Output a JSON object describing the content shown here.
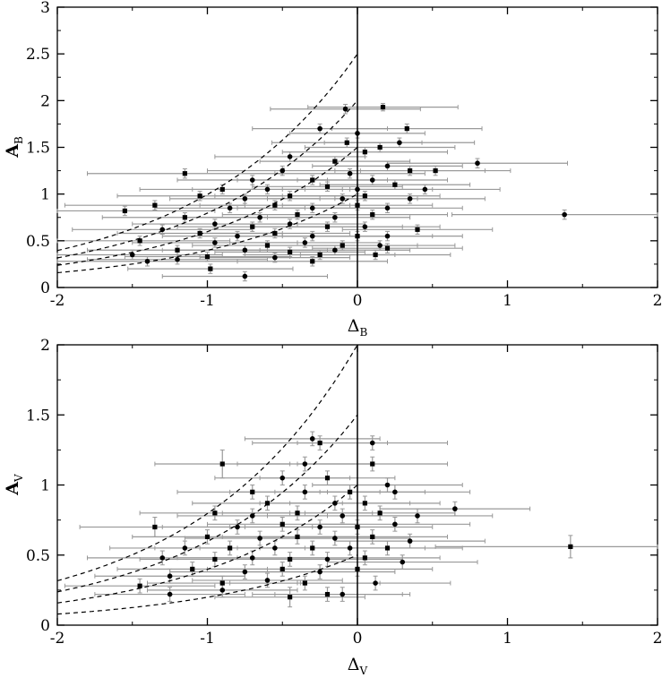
{
  "chart_data": [
    {
      "type": "scatter",
      "title": "",
      "xlabel": "Δ",
      "xlabel_sub": "B",
      "ylabel": "A",
      "ylabel_sub": "B",
      "xlim": [
        -2,
        2
      ],
      "ylim": [
        0,
        3
      ],
      "xticks": [
        -2,
        -1,
        0,
        1,
        2
      ],
      "yticks": [
        0,
        0.5,
        1,
        1.5,
        2,
        2.5,
        3
      ],
      "xtick_labels": [
        "-2",
        "-1",
        "0",
        "1",
        "2"
      ],
      "ytick_labels": [
        "0",
        "0.5",
        "1",
        "1.5",
        "2",
        "2.5",
        "3"
      ],
      "grid": false,
      "legend": "none",
      "vertical_line_x": 0,
      "dashed_curves_amplitude_at_zero": [
        2.5,
        2.0,
        1.5,
        1.0
      ],
      "marker_color": "#000000",
      "errorbar_color": "#999999",
      "points": [
        {
          "x": -0.08,
          "y": 1.91,
          "xerr": 0.5,
          "yerr": 0.05
        },
        {
          "x": 0.17,
          "y": 1.93,
          "xerr": 0.5,
          "yerr": 0.04
        },
        {
          "x": -0.25,
          "y": 1.7,
          "xerr": 0.45,
          "yerr": 0.05
        },
        {
          "x": 0.33,
          "y": 1.7,
          "xerr": 0.5,
          "yerr": 0.05
        },
        {
          "x": 0.0,
          "y": 1.65,
          "xerr": 0.45,
          "yerr": 0.05
        },
        {
          "x": -0.07,
          "y": 1.55,
          "xerr": 0.5,
          "yerr": 0.05
        },
        {
          "x": 0.28,
          "y": 1.55,
          "xerr": 0.5,
          "yerr": 0.05
        },
        {
          "x": 0.15,
          "y": 1.5,
          "xerr": 0.5,
          "yerr": 0.05
        },
        {
          "x": -0.45,
          "y": 1.4,
          "xerr": 0.5,
          "yerr": 0.05
        },
        {
          "x": 0.05,
          "y": 1.45,
          "xerr": 0.55,
          "yerr": 0.05
        },
        {
          "x": 0.8,
          "y": 1.33,
          "xerr": 0.6,
          "yerr": 0.05
        },
        {
          "x": -0.15,
          "y": 1.35,
          "xerr": 0.5,
          "yerr": 0.05
        },
        {
          "x": 0.2,
          "y": 1.3,
          "xerr": 0.5,
          "yerr": 0.05
        },
        {
          "x": -1.15,
          "y": 1.22,
          "xerr": 0.65,
          "yerr": 0.05
        },
        {
          "x": -0.5,
          "y": 1.25,
          "xerr": 0.5,
          "yerr": 0.05
        },
        {
          "x": 0.35,
          "y": 1.25,
          "xerr": 0.5,
          "yerr": 0.05
        },
        {
          "x": -0.05,
          "y": 1.22,
          "xerr": 0.5,
          "yerr": 0.05
        },
        {
          "x": 0.52,
          "y": 1.25,
          "xerr": 0.5,
          "yerr": 0.05
        },
        {
          "x": -0.7,
          "y": 1.15,
          "xerr": 0.5,
          "yerr": 0.05
        },
        {
          "x": -0.3,
          "y": 1.15,
          "xerr": 0.5,
          "yerr": 0.05
        },
        {
          "x": 0.1,
          "y": 1.15,
          "xerr": 0.5,
          "yerr": 0.05
        },
        {
          "x": -0.9,
          "y": 1.05,
          "xerr": 0.55,
          "yerr": 0.05
        },
        {
          "x": -0.6,
          "y": 1.05,
          "xerr": 0.5,
          "yerr": 0.05
        },
        {
          "x": -0.2,
          "y": 1.08,
          "xerr": 0.5,
          "yerr": 0.05
        },
        {
          "x": 0.0,
          "y": 1.05,
          "xerr": 0.5,
          "yerr": 0.05
        },
        {
          "x": 0.25,
          "y": 1.1,
          "xerr": 0.5,
          "yerr": 0.05
        },
        {
          "x": 0.45,
          "y": 1.05,
          "xerr": 0.5,
          "yerr": 0.05
        },
        {
          "x": -1.05,
          "y": 0.98,
          "xerr": 0.55,
          "yerr": 0.05
        },
        {
          "x": -0.75,
          "y": 0.95,
          "xerr": 0.5,
          "yerr": 0.05
        },
        {
          "x": -0.45,
          "y": 0.98,
          "xerr": 0.5,
          "yerr": 0.05
        },
        {
          "x": -0.1,
          "y": 0.95,
          "xerr": 0.5,
          "yerr": 0.05
        },
        {
          "x": 0.05,
          "y": 0.98,
          "xerr": 0.5,
          "yerr": 0.05
        },
        {
          "x": 0.35,
          "y": 0.95,
          "xerr": 0.5,
          "yerr": 0.05
        },
        {
          "x": -1.35,
          "y": 0.88,
          "xerr": 0.6,
          "yerr": 0.05
        },
        {
          "x": -0.85,
          "y": 0.85,
          "xerr": 0.5,
          "yerr": 0.05
        },
        {
          "x": -0.55,
          "y": 0.88,
          "xerr": 0.5,
          "yerr": 0.05
        },
        {
          "x": -0.3,
          "y": 0.85,
          "xerr": 0.5,
          "yerr": 0.05
        },
        {
          "x": 0.0,
          "y": 0.88,
          "xerr": 0.5,
          "yerr": 0.05
        },
        {
          "x": 0.2,
          "y": 0.85,
          "xerr": 0.5,
          "yerr": 0.05
        },
        {
          "x": -1.55,
          "y": 0.82,
          "xerr": 0.6,
          "yerr": 0.05
        },
        {
          "x": 1.38,
          "y": 0.78,
          "xerr": 0.75,
          "yerr": 0.05
        },
        {
          "x": -1.15,
          "y": 0.75,
          "xerr": 0.55,
          "yerr": 0.05
        },
        {
          "x": -0.65,
          "y": 0.75,
          "xerr": 0.5,
          "yerr": 0.05
        },
        {
          "x": -0.4,
          "y": 0.78,
          "xerr": 0.5,
          "yerr": 0.05
        },
        {
          "x": -0.15,
          "y": 0.75,
          "xerr": 0.5,
          "yerr": 0.05
        },
        {
          "x": 0.1,
          "y": 0.78,
          "xerr": 0.5,
          "yerr": 0.05
        },
        {
          "x": -0.95,
          "y": 0.68,
          "xerr": 0.55,
          "yerr": 0.05
        },
        {
          "x": -0.7,
          "y": 0.65,
          "xerr": 0.5,
          "yerr": 0.05
        },
        {
          "x": -0.45,
          "y": 0.68,
          "xerr": 0.5,
          "yerr": 0.05
        },
        {
          "x": -0.2,
          "y": 0.65,
          "xerr": 0.5,
          "yerr": 0.05
        },
        {
          "x": 0.05,
          "y": 0.65,
          "xerr": 0.5,
          "yerr": 0.05
        },
        {
          "x": 0.4,
          "y": 0.62,
          "xerr": 0.5,
          "yerr": 0.05
        },
        {
          "x": -1.3,
          "y": 0.62,
          "xerr": 0.6,
          "yerr": 0.05
        },
        {
          "x": -1.05,
          "y": 0.58,
          "xerr": 0.55,
          "yerr": 0.05
        },
        {
          "x": -0.8,
          "y": 0.55,
          "xerr": 0.5,
          "yerr": 0.05
        },
        {
          "x": -0.55,
          "y": 0.58,
          "xerr": 0.5,
          "yerr": 0.05
        },
        {
          "x": -0.3,
          "y": 0.55,
          "xerr": 0.5,
          "yerr": 0.05
        },
        {
          "x": 0.0,
          "y": 0.55,
          "xerr": 0.5,
          "yerr": 0.05
        },
        {
          "x": 0.2,
          "y": 0.55,
          "xerr": 0.5,
          "yerr": 0.05
        },
        {
          "x": -1.45,
          "y": 0.5,
          "xerr": 0.6,
          "yerr": 0.05
        },
        {
          "x": -0.95,
          "y": 0.48,
          "xerr": 0.55,
          "yerr": 0.05
        },
        {
          "x": -0.6,
          "y": 0.45,
          "xerr": 0.5,
          "yerr": 0.05
        },
        {
          "x": -0.35,
          "y": 0.48,
          "xerr": 0.5,
          "yerr": 0.05
        },
        {
          "x": -0.1,
          "y": 0.45,
          "xerr": 0.5,
          "yerr": 0.05
        },
        {
          "x": 0.15,
          "y": 0.45,
          "xerr": 0.5,
          "yerr": 0.05
        },
        {
          "x": -1.2,
          "y": 0.4,
          "xerr": 0.6,
          "yerr": 0.05
        },
        {
          "x": -0.75,
          "y": 0.4,
          "xerr": 0.55,
          "yerr": 0.05
        },
        {
          "x": -0.45,
          "y": 0.38,
          "xerr": 0.5,
          "yerr": 0.05
        },
        {
          "x": -0.15,
          "y": 0.4,
          "xerr": 0.5,
          "yerr": 0.05
        },
        {
          "x": 0.2,
          "y": 0.42,
          "xerr": 0.5,
          "yerr": 0.05
        },
        {
          "x": -1.5,
          "y": 0.35,
          "xerr": 0.6,
          "yerr": 0.05
        },
        {
          "x": -1.0,
          "y": 0.33,
          "xerr": 0.55,
          "yerr": 0.05
        },
        {
          "x": -0.55,
          "y": 0.32,
          "xerr": 0.5,
          "yerr": 0.05
        },
        {
          "x": -0.25,
          "y": 0.35,
          "xerr": 0.5,
          "yerr": 0.05
        },
        {
          "x": -1.4,
          "y": 0.28,
          "xerr": 0.6,
          "yerr": 0.05
        },
        {
          "x": -0.3,
          "y": 0.28,
          "xerr": 0.5,
          "yerr": 0.05
        },
        {
          "x": -1.2,
          "y": 0.3,
          "xerr": 0.6,
          "yerr": 0.05
        },
        {
          "x": -0.98,
          "y": 0.2,
          "xerr": 0.55,
          "yerr": 0.05
        },
        {
          "x": -0.75,
          "y": 0.12,
          "xerr": 0.55,
          "yerr": 0.05
        },
        {
          "x": 0.12,
          "y": 0.35,
          "xerr": 0.5,
          "yerr": 0.05
        }
      ]
    },
    {
      "type": "scatter",
      "title": "",
      "xlabel": "Δ",
      "xlabel_sub": "V",
      "ylabel": "A",
      "ylabel_sub": "V",
      "xlim": [
        -2,
        2
      ],
      "ylim": [
        0,
        2
      ],
      "xticks": [
        -2,
        -1,
        0,
        1,
        2
      ],
      "yticks": [
        0,
        0.5,
        1,
        1.5,
        2
      ],
      "xtick_labels": [
        "-2",
        "-1",
        "0",
        "1",
        "2"
      ],
      "ytick_labels": [
        "0",
        "0.5",
        "1",
        "1.5",
        "2"
      ],
      "grid": false,
      "legend": "none",
      "vertical_line_x": 0,
      "dashed_curves_amplitude_at_zero": [
        2.0,
        1.5,
        1.0,
        0.5
      ],
      "marker_color": "#000000",
      "errorbar_color": "#999999",
      "points": [
        {
          "x": -0.3,
          "y": 1.33,
          "xerr": 0.45,
          "yerr": 0.05
        },
        {
          "x": -0.25,
          "y": 1.3,
          "xerr": 0.45,
          "yerr": 0.05
        },
        {
          "x": 0.1,
          "y": 1.3,
          "xerr": 0.5,
          "yerr": 0.05
        },
        {
          "x": -0.9,
          "y": 1.15,
          "xerr": 0.45,
          "yerr": 0.1
        },
        {
          "x": -0.35,
          "y": 1.15,
          "xerr": 0.45,
          "yerr": 0.05
        },
        {
          "x": 0.1,
          "y": 1.15,
          "xerr": 0.5,
          "yerr": 0.05
        },
        {
          "x": -0.5,
          "y": 1.05,
          "xerr": 0.45,
          "yerr": 0.05
        },
        {
          "x": -0.2,
          "y": 1.05,
          "xerr": 0.45,
          "yerr": 0.05
        },
        {
          "x": 0.2,
          "y": 1.0,
          "xerr": 0.5,
          "yerr": 0.05
        },
        {
          "x": -0.7,
          "y": 0.95,
          "xerr": 0.5,
          "yerr": 0.05
        },
        {
          "x": -0.35,
          "y": 0.95,
          "xerr": 0.5,
          "yerr": 0.05
        },
        {
          "x": -0.05,
          "y": 0.95,
          "xerr": 0.5,
          "yerr": 0.05
        },
        {
          "x": 0.25,
          "y": 0.95,
          "xerr": 0.5,
          "yerr": 0.05
        },
        {
          "x": -0.6,
          "y": 0.87,
          "xerr": 0.5,
          "yerr": 0.05
        },
        {
          "x": -0.15,
          "y": 0.87,
          "xerr": 0.5,
          "yerr": 0.05
        },
        {
          "x": 0.05,
          "y": 0.87,
          "xerr": 0.5,
          "yerr": 0.05
        },
        {
          "x": 0.65,
          "y": 0.83,
          "xerr": 0.5,
          "yerr": 0.05
        },
        {
          "x": -0.95,
          "y": 0.8,
          "xerr": 0.5,
          "yerr": 0.05
        },
        {
          "x": -0.7,
          "y": 0.78,
          "xerr": 0.5,
          "yerr": 0.05
        },
        {
          "x": -0.4,
          "y": 0.8,
          "xerr": 0.5,
          "yerr": 0.05
        },
        {
          "x": -0.1,
          "y": 0.78,
          "xerr": 0.5,
          "yerr": 0.05
        },
        {
          "x": 0.15,
          "y": 0.8,
          "xerr": 0.5,
          "yerr": 0.05
        },
        {
          "x": 0.4,
          "y": 0.78,
          "xerr": 0.5,
          "yerr": 0.05
        },
        {
          "x": -1.35,
          "y": 0.7,
          "xerr": 0.5,
          "yerr": 0.07
        },
        {
          "x": -0.8,
          "y": 0.7,
          "xerr": 0.5,
          "yerr": 0.05
        },
        {
          "x": -0.5,
          "y": 0.72,
          "xerr": 0.5,
          "yerr": 0.05
        },
        {
          "x": -0.25,
          "y": 0.7,
          "xerr": 0.5,
          "yerr": 0.05
        },
        {
          "x": 0.0,
          "y": 0.7,
          "xerr": 0.5,
          "yerr": 0.05
        },
        {
          "x": 0.25,
          "y": 0.72,
          "xerr": 0.5,
          "yerr": 0.05
        },
        {
          "x": -1.0,
          "y": 0.63,
          "xerr": 0.5,
          "yerr": 0.05
        },
        {
          "x": -0.65,
          "y": 0.62,
          "xerr": 0.5,
          "yerr": 0.05
        },
        {
          "x": -0.4,
          "y": 0.63,
          "xerr": 0.5,
          "yerr": 0.05
        },
        {
          "x": -0.15,
          "y": 0.62,
          "xerr": 0.5,
          "yerr": 0.05
        },
        {
          "x": 0.1,
          "y": 0.63,
          "xerr": 0.5,
          "yerr": 0.05
        },
        {
          "x": 0.35,
          "y": 0.6,
          "xerr": 0.5,
          "yerr": 0.05
        },
        {
          "x": 1.42,
          "y": 0.56,
          "xerr": 0.9,
          "yerr": 0.08
        },
        {
          "x": -1.15,
          "y": 0.55,
          "xerr": 0.5,
          "yerr": 0.05
        },
        {
          "x": -0.85,
          "y": 0.55,
          "xerr": 0.5,
          "yerr": 0.05
        },
        {
          "x": -0.55,
          "y": 0.55,
          "xerr": 0.5,
          "yerr": 0.05
        },
        {
          "x": -0.3,
          "y": 0.55,
          "xerr": 0.5,
          "yerr": 0.05
        },
        {
          "x": -0.05,
          "y": 0.55,
          "xerr": 0.5,
          "yerr": 0.05
        },
        {
          "x": 0.2,
          "y": 0.55,
          "xerr": 0.5,
          "yerr": 0.05
        },
        {
          "x": -1.3,
          "y": 0.48,
          "xerr": 0.5,
          "yerr": 0.05
        },
        {
          "x": -0.95,
          "y": 0.47,
          "xerr": 0.5,
          "yerr": 0.05
        },
        {
          "x": -0.7,
          "y": 0.48,
          "xerr": 0.5,
          "yerr": 0.05
        },
        {
          "x": -0.45,
          "y": 0.47,
          "xerr": 0.5,
          "yerr": 0.05
        },
        {
          "x": -0.2,
          "y": 0.47,
          "xerr": 0.5,
          "yerr": 0.05
        },
        {
          "x": 0.05,
          "y": 0.48,
          "xerr": 0.5,
          "yerr": 0.05
        },
        {
          "x": 0.3,
          "y": 0.45,
          "xerr": 0.5,
          "yerr": 0.05
        },
        {
          "x": -1.1,
          "y": 0.4,
          "xerr": 0.5,
          "yerr": 0.05
        },
        {
          "x": -0.75,
          "y": 0.38,
          "xerr": 0.5,
          "yerr": 0.05
        },
        {
          "x": -0.5,
          "y": 0.4,
          "xerr": 0.5,
          "yerr": 0.05
        },
        {
          "x": -0.25,
          "y": 0.38,
          "xerr": 0.5,
          "yerr": 0.05
        },
        {
          "x": 0.0,
          "y": 0.4,
          "xerr": 0.5,
          "yerr": 0.05
        },
        {
          "x": -1.25,
          "y": 0.35,
          "xerr": 0.5,
          "yerr": 0.05
        },
        {
          "x": -0.9,
          "y": 0.3,
          "xerr": 0.5,
          "yerr": 0.05
        },
        {
          "x": -0.6,
          "y": 0.32,
          "xerr": 0.5,
          "yerr": 0.05
        },
        {
          "x": -0.35,
          "y": 0.3,
          "xerr": 0.5,
          "yerr": 0.05
        },
        {
          "x": 0.12,
          "y": 0.3,
          "xerr": 0.5,
          "yerr": 0.05
        },
        {
          "x": -1.45,
          "y": 0.28,
          "xerr": 0.5,
          "yerr": 0.05
        },
        {
          "x": -0.9,
          "y": 0.25,
          "xerr": 0.5,
          "yerr": 0.05
        },
        {
          "x": -0.2,
          "y": 0.22,
          "xerr": 0.5,
          "yerr": 0.05
        },
        {
          "x": -1.25,
          "y": 0.22,
          "xerr": 0.5,
          "yerr": 0.05
        },
        {
          "x": -0.45,
          "y": 0.2,
          "xerr": 0.5,
          "yerr": 0.07
        },
        {
          "x": -0.1,
          "y": 0.22,
          "xerr": 0.45,
          "yerr": 0.05
        }
      ]
    }
  ]
}
